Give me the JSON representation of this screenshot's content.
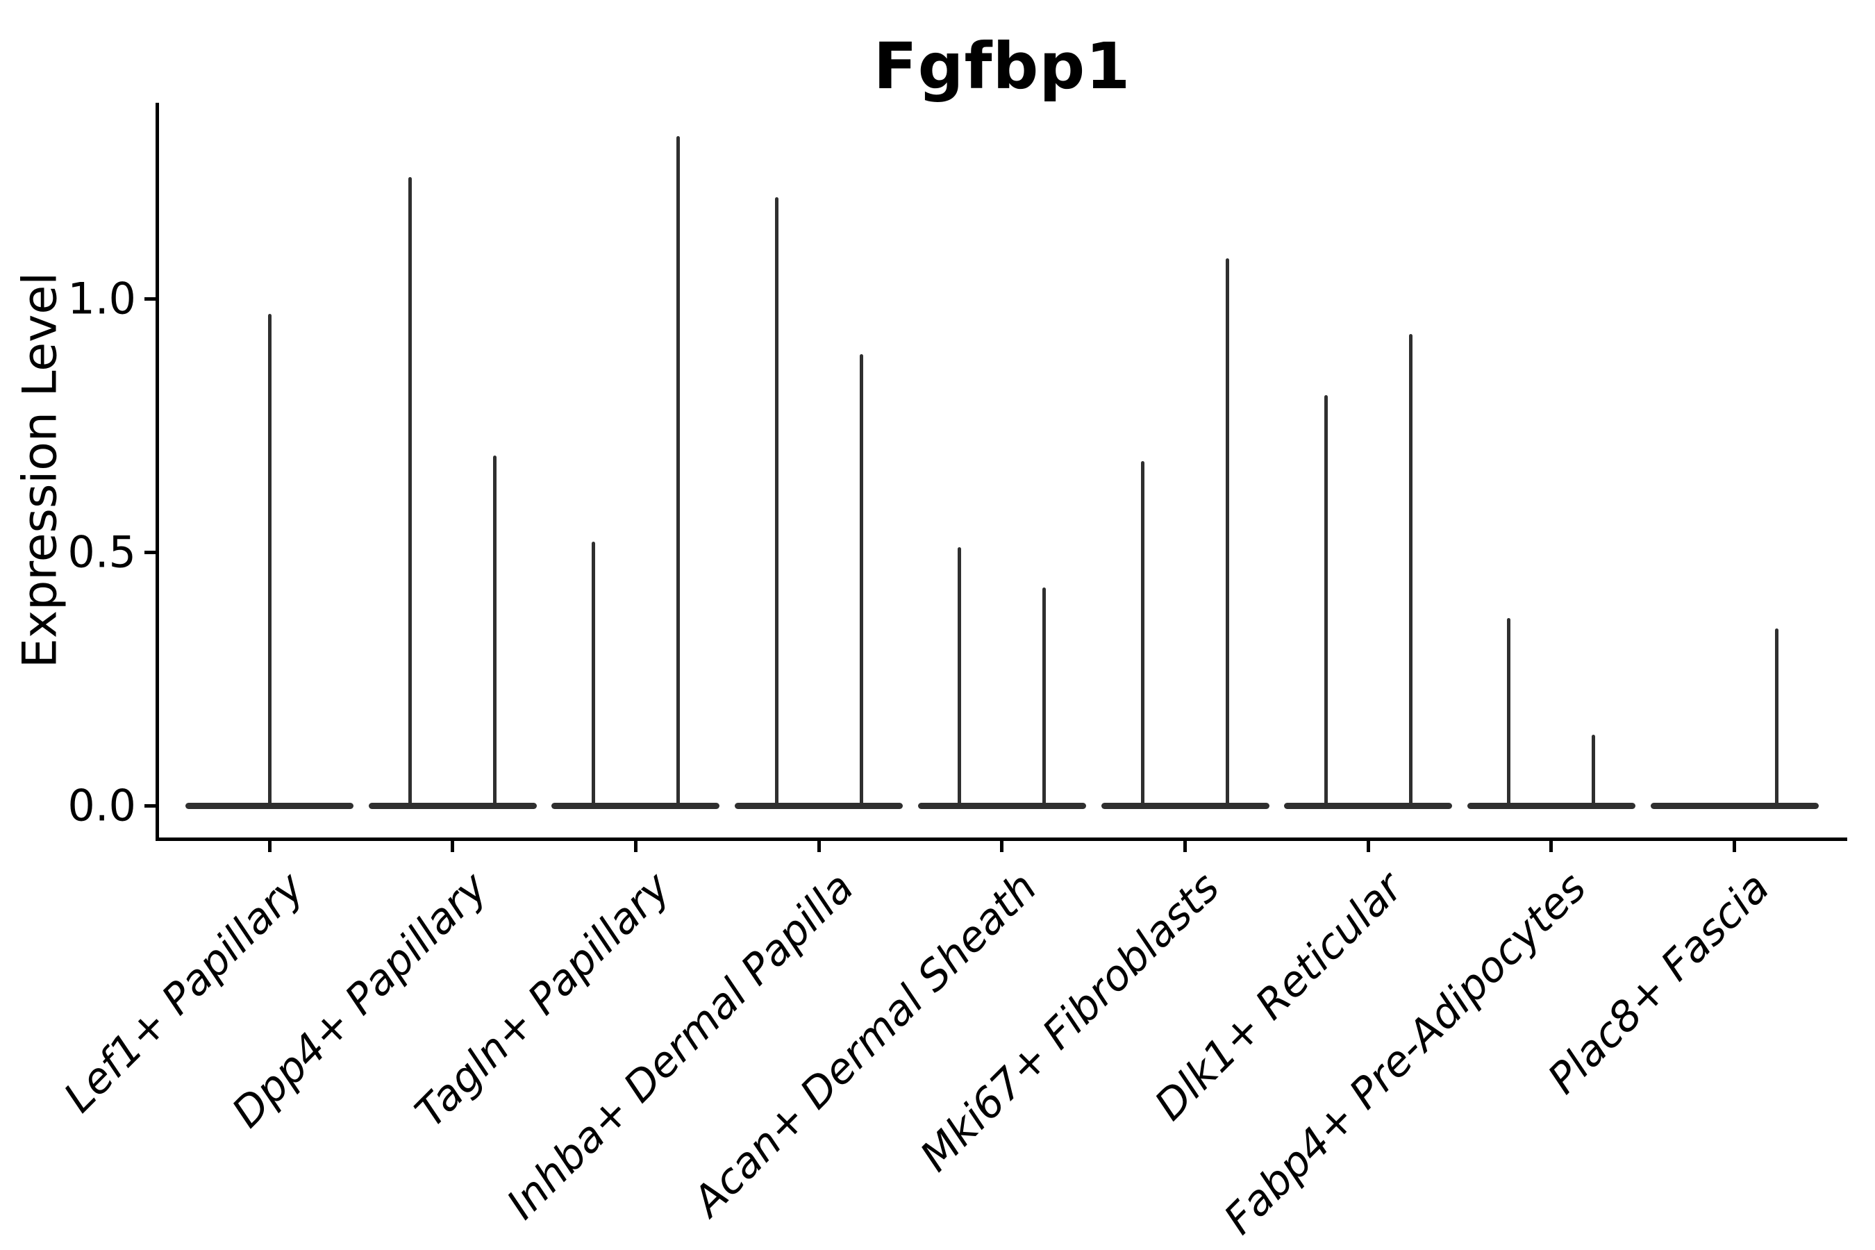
{
  "figure": {
    "title": "Fgfbp1"
  },
  "axes": {
    "y_label": "Expression Level",
    "y_tick_labels": [
      "0.0",
      "0.5",
      "1.0"
    ],
    "x_label": ""
  },
  "chart_data": {
    "type": "violin",
    "title": "Fgfbp1",
    "xlabel": "",
    "ylabel": "Expression Level",
    "ylim": [
      -0.06,
      1.39
    ],
    "y_ticks": [
      0.0,
      0.5,
      1.0
    ],
    "y_tick_labels": [
      "0.0",
      "0.5",
      "1.0"
    ],
    "grid": false,
    "legend": null,
    "baseline_value": 0.0,
    "categories": [
      "Lef1+ Papillary",
      "Dpp4+ Papillary",
      "Tagln+ Papillary",
      "Inhba+ Dermal Papilla",
      "Acan+ Dermal Sheath",
      "Mki67+ Fibroblasts",
      "Dlk1+ Reticular",
      "Fabp4+ Pre-Adipocytes",
      "Plac8+ Fascia"
    ],
    "series": [
      {
        "category": "Lef1+ Papillary",
        "violins": [
          {
            "pos": 0,
            "max": 0.97
          }
        ]
      },
      {
        "category": "Dpp4+ Papillary",
        "violins": [
          {
            "pos": -1,
            "max": 1.24
          },
          {
            "pos": 1,
            "max": 0.69
          }
        ]
      },
      {
        "category": "Tagln+ Papillary",
        "violins": [
          {
            "pos": -1,
            "max": 0.52
          },
          {
            "pos": 1,
            "max": 1.32
          }
        ]
      },
      {
        "category": "Inhba+ Dermal Papilla",
        "violins": [
          {
            "pos": -1,
            "max": 1.2
          },
          {
            "pos": 1,
            "max": 0.89
          }
        ]
      },
      {
        "category": "Acan+ Dermal Sheath",
        "violins": [
          {
            "pos": -1,
            "max": 0.51
          },
          {
            "pos": 1,
            "max": 0.43
          }
        ]
      },
      {
        "category": "Mki67+ Fibroblasts",
        "violins": [
          {
            "pos": -1,
            "max": 0.68
          },
          {
            "pos": 1,
            "max": 1.08
          }
        ]
      },
      {
        "category": "Dlk1+ Reticular",
        "violins": [
          {
            "pos": -1,
            "max": 0.81
          },
          {
            "pos": 1,
            "max": 0.93
          }
        ]
      },
      {
        "category": "Fabp4+ Pre-Adipocytes",
        "violins": [
          {
            "pos": -1,
            "max": 0.37
          },
          {
            "pos": 1,
            "max": 0.14
          }
        ]
      },
      {
        "category": "Plac8+ Fascia",
        "violins": [
          {
            "pos": 1,
            "max": 0.35
          }
        ]
      }
    ]
  },
  "style": {
    "ink_color": "#2f2f2f",
    "spine_color": "#000000",
    "text_color": "#000000",
    "background": "#ffffff"
  }
}
